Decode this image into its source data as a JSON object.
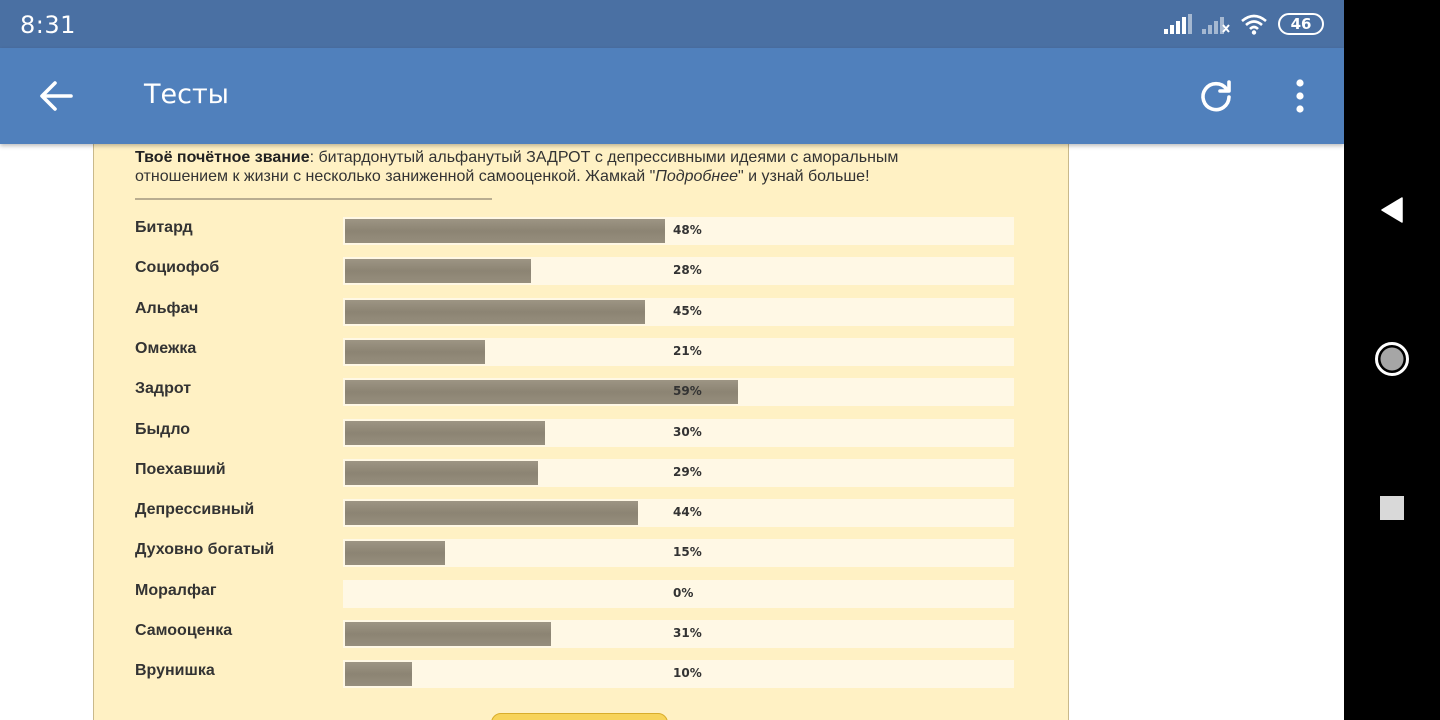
{
  "status_bar": {
    "time": "8:31",
    "battery": "46"
  },
  "app_bar": {
    "title": "Тесты"
  },
  "result": {
    "title_label": "Твоё почётное звание",
    "title_text": ": битардонутый альфанутый ЗАДРОТ с депрессивными идеями с аморальным отношением к жизни с несколько заниженной самооценкой. Жамкай \"",
    "link_word": "Подробнее",
    "tail_text": "\" и узнай больше!"
  },
  "chart_data": {
    "type": "bar",
    "orientation": "horizontal",
    "categories": [
      "Битард",
      "Социофоб",
      "Альфач",
      "Омежка",
      "Задрот",
      "Быдло",
      "Поехавший",
      "Депрессивный",
      "Духовно богатый",
      "Моралфаг",
      "Самооценка",
      "Врунишка"
    ],
    "values": [
      48,
      28,
      45,
      21,
      59,
      30,
      29,
      44,
      15,
      0,
      31,
      10
    ],
    "value_labels": [
      "48%",
      "28%",
      "45%",
      "21%",
      "59%",
      "30%",
      "29%",
      "44%",
      "15%",
      "0%",
      "31%",
      "10%"
    ],
    "xlim": [
      0,
      100
    ],
    "colors": {
      "bar": "#8f8776",
      "track": "#fff8e5",
      "panel": "#fff1c4"
    }
  },
  "colors": {
    "status_bar": "#4a70a3",
    "app_bar": "#5080bc"
  },
  "icons": {
    "back": "arrow-left-icon",
    "refresh": "refresh-icon",
    "more": "more-vertical-icon",
    "nav_back": "triangle-back-icon",
    "nav_home": "circle-home-icon",
    "nav_recents": "square-recents-icon"
  }
}
